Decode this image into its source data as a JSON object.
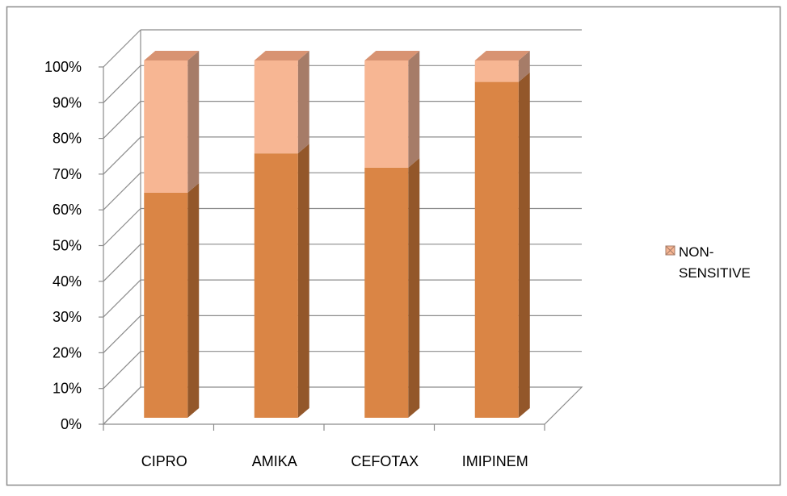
{
  "chart_data": {
    "type": "bar",
    "stacked": true,
    "three_d": true,
    "categories": [
      "CIPRO",
      "AMIKA",
      "CEFOTAX",
      "IMIPINEM"
    ],
    "series": [
      {
        "values": [
          63,
          74,
          70,
          94
        ],
        "color": "#DA8545",
        "side_color": "#93572A",
        "top_color": "#E8A070"
      },
      {
        "name": "NON-SENSITIVE",
        "values": [
          37,
          26,
          30,
          6
        ],
        "color": "#F7B693",
        "side_color": "#A67C68",
        "top_color": "#D89372"
      }
    ],
    "y_ticks": [
      "0%",
      "10%",
      "20%",
      "30%",
      "40%",
      "50%",
      "60%",
      "70%",
      "80%",
      "90%",
      "100%"
    ],
    "ylim": [
      0,
      100
    ],
    "grid": true,
    "legend_position": "right"
  }
}
